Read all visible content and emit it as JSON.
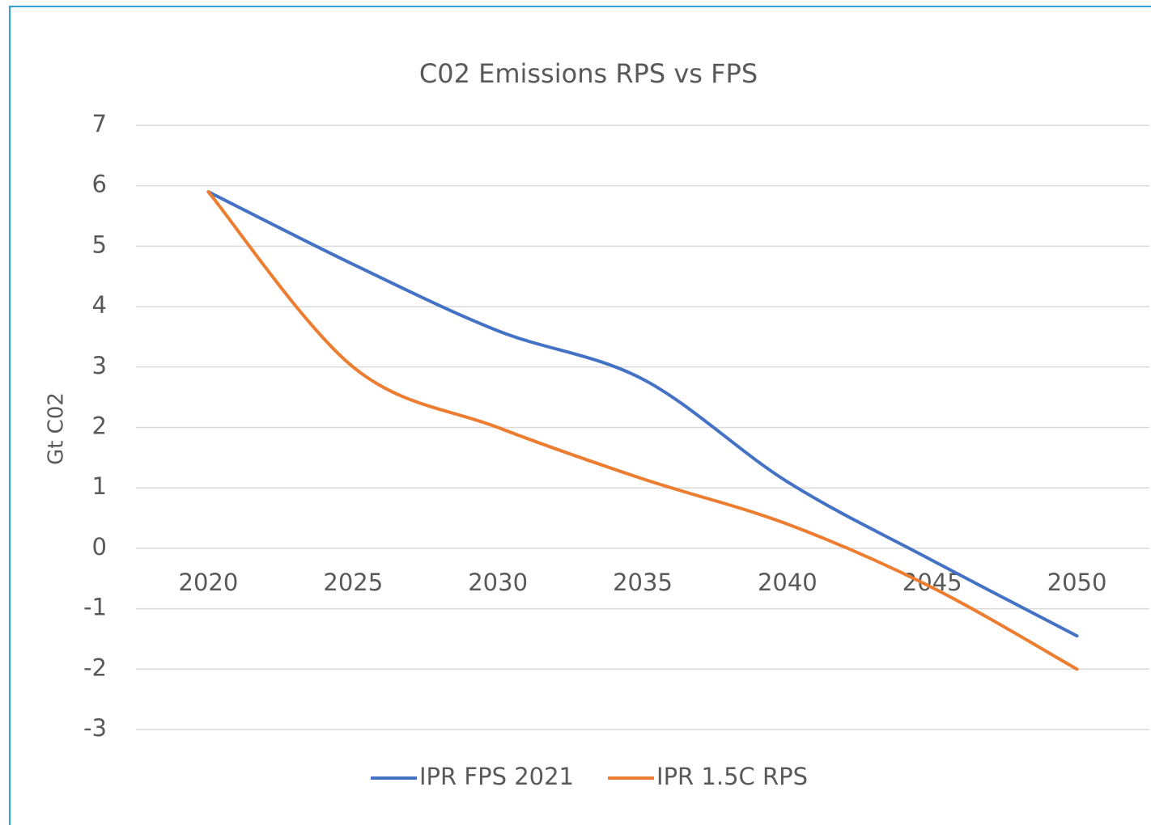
{
  "chart_data": {
    "type": "line",
    "title": "C02 Emissions RPS vs FPS",
    "y_label": "Gt C02",
    "categories": [
      "2020",
      "2025",
      "2030",
      "2035",
      "2040",
      "2045",
      "2050"
    ],
    "series": [
      {
        "name": "IPR FPS 2021",
        "color": "#4472c4",
        "values": [
          5.9,
          4.7,
          3.6,
          2.8,
          1.1,
          -0.2,
          -1.45
        ]
      },
      {
        "name": "IPR 1.5C RPS",
        "color": "#ed7d31",
        "values": [
          5.9,
          3.0,
          2.0,
          1.15,
          0.4,
          -0.65,
          -2.0
        ]
      }
    ],
    "ylim": [
      -3,
      7
    ],
    "yticks": [
      -3,
      -2,
      -1,
      0,
      1,
      2,
      3,
      4,
      5,
      6,
      7
    ],
    "grid": true,
    "legend": "bottom",
    "smooth": true
  }
}
